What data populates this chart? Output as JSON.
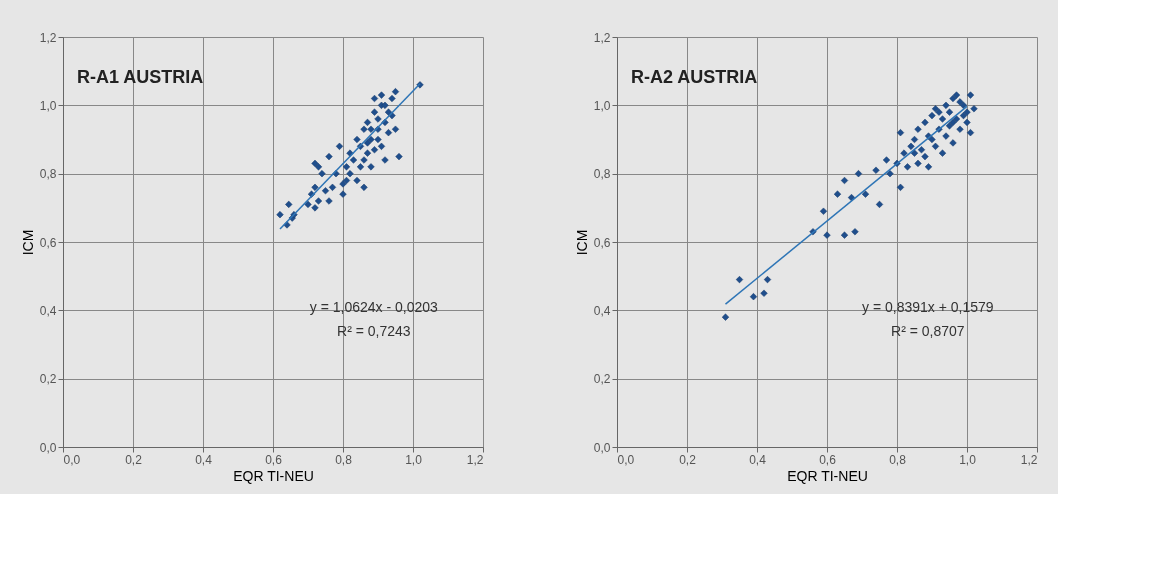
{
  "chart_data": [
    {
      "type": "scatter",
      "title": "R-A1 AUSTRIA",
      "xlabel": "EQR TI-NEU",
      "ylabel": "ICM",
      "annotations": [
        "y = 1,0624x - 0,0203",
        "R² = 0,7243"
      ],
      "xlim": [
        0,
        1.2
      ],
      "ylim": [
        0,
        1.2
      ],
      "xticks": [
        {
          "value": 0,
          "label": "0,0"
        },
        {
          "value": 0.2,
          "label": "0,2"
        },
        {
          "value": 0.4,
          "label": "0,4"
        },
        {
          "value": 0.6,
          "label": "0,6"
        },
        {
          "value": 0.8,
          "label": "0,8"
        },
        {
          "value": 1.0,
          "label": "1,0"
        },
        {
          "value": 1.2,
          "label": "1,2"
        }
      ],
      "yticks": [
        {
          "value": 0,
          "label": "0,0"
        },
        {
          "value": 0.2,
          "label": "0,2"
        },
        {
          "value": 0.4,
          "label": "0,4"
        },
        {
          "value": 0.6,
          "label": "0,6"
        },
        {
          "value": 0.8,
          "label": "0,8"
        },
        {
          "value": 1.0,
          "label": "1,0"
        },
        {
          "value": 1.2,
          "label": "1,2"
        }
      ],
      "grid": true,
      "series": [
        {
          "type": "scatter",
          "marker": "diamond",
          "color": "#1f4e8c",
          "x": [
            0.62,
            0.645,
            0.64,
            0.655,
            0.66,
            0.7,
            0.71,
            0.72,
            0.72,
            0.73,
            0.72,
            0.73,
            0.74,
            0.75,
            0.76,
            0.76,
            0.77,
            0.78,
            0.79,
            0.8,
            0.8,
            0.81,
            0.81,
            0.82,
            0.82,
            0.83,
            0.84,
            0.84,
            0.85,
            0.85,
            0.86,
            0.86,
            0.87,
            0.87,
            0.88,
            0.88,
            0.89,
            0.89,
            0.89,
            0.9,
            0.9,
            0.91,
            0.91,
            0.91,
            0.92,
            0.92,
            0.92,
            0.93,
            0.93,
            0.94,
            0.94,
            0.95,
            0.95,
            0.96,
            0.9,
            0.88,
            0.87,
            0.86,
            1.02
          ],
          "values": [
            0.68,
            0.71,
            0.65,
            0.67,
            0.68,
            0.71,
            0.74,
            0.76,
            0.7,
            0.72,
            0.83,
            0.82,
            0.8,
            0.75,
            0.72,
            0.85,
            0.76,
            0.8,
            0.88,
            0.74,
            0.77,
            0.82,
            0.78,
            0.86,
            0.8,
            0.84,
            0.78,
            0.9,
            0.88,
            0.82,
            0.76,
            0.93,
            0.86,
            0.95,
            0.9,
            0.82,
            0.98,
            0.87,
            1.02,
            0.93,
            0.96,
            1.0,
            0.88,
            1.03,
            0.95,
            0.84,
            1.0,
            0.92,
            0.98,
            1.02,
            0.97,
            1.04,
            0.93,
            0.85,
            0.9,
            0.93,
            0.89,
            0.84,
            1.06
          ]
        },
        {
          "type": "line",
          "marker": "none",
          "color": "#2e75b6",
          "x": [
            0.62,
            1.02
          ],
          "values": [
            0.638,
            1.063
          ]
        }
      ]
    },
    {
      "type": "scatter",
      "title": "R-A2 AUSTRIA",
      "xlabel": "EQR TI-NEU",
      "ylabel": "ICM",
      "annotations": [
        "y = 0,8391x + 0,1579",
        "R² = 0,8707"
      ],
      "xlim": [
        0,
        1.2
      ],
      "ylim": [
        0,
        1.2
      ],
      "xticks": [
        {
          "value": 0,
          "label": "0,0"
        },
        {
          "value": 0.2,
          "label": "0,2"
        },
        {
          "value": 0.4,
          "label": "0,4"
        },
        {
          "value": 0.6,
          "label": "0,6"
        },
        {
          "value": 0.8,
          "label": "0,8"
        },
        {
          "value": 1.0,
          "label": "1,0"
        },
        {
          "value": 1.2,
          "label": "1,2"
        }
      ],
      "yticks": [
        {
          "value": 0,
          "label": "0,0"
        },
        {
          "value": 0.2,
          "label": "0,2"
        },
        {
          "value": 0.4,
          "label": "0,4"
        },
        {
          "value": 0.6,
          "label": "0,6"
        },
        {
          "value": 0.8,
          "label": "0,8"
        },
        {
          "value": 1.0,
          "label": "1,0"
        },
        {
          "value": 1.2,
          "label": "1,2"
        }
      ],
      "grid": true,
      "series": [
        {
          "type": "scatter",
          "marker": "diamond",
          "color": "#1f4e8c",
          "x": [
            0.31,
            0.35,
            0.39,
            0.42,
            0.43,
            0.56,
            0.6,
            0.65,
            0.68,
            0.59,
            0.63,
            0.65,
            0.67,
            0.69,
            0.71,
            0.75,
            0.74,
            0.77,
            0.81,
            0.81,
            0.78,
            0.8,
            0.82,
            0.83,
            0.84,
            0.85,
            0.86,
            0.86,
            0.87,
            0.88,
            0.88,
            0.89,
            0.9,
            0.9,
            0.91,
            0.91,
            0.92,
            0.93,
            0.93,
            0.94,
            0.94,
            0.95,
            0.95,
            0.96,
            0.96,
            0.97,
            0.97,
            0.98,
            0.98,
            0.99,
            1.0,
            1.0,
            1.01,
            1.01,
            1.02,
            0.85,
            0.89,
            0.92,
            0.96,
            0.99
          ],
          "values": [
            0.38,
            0.49,
            0.44,
            0.45,
            0.49,
            0.63,
            0.62,
            0.62,
            0.63,
            0.69,
            0.74,
            0.78,
            0.73,
            0.8,
            0.74,
            0.71,
            0.81,
            0.84,
            0.76,
            0.92,
            0.8,
            0.83,
            0.86,
            0.82,
            0.88,
            0.9,
            0.83,
            0.93,
            0.87,
            0.85,
            0.95,
            0.82,
            0.9,
            0.97,
            0.88,
            0.99,
            0.93,
            0.96,
            0.86,
            1.0,
            0.91,
            0.98,
            0.94,
            1.02,
            0.89,
            1.03,
            0.96,
            1.01,
            0.93,
            1.0,
            0.98,
            0.95,
            1.03,
            0.92,
            0.99,
            0.86,
            0.91,
            0.98,
            0.95,
            0.97
          ]
        },
        {
          "type": "line",
          "marker": "none",
          "color": "#2e75b6",
          "x": [
            0.31,
            1.0
          ],
          "values": [
            0.418,
            0.997
          ]
        }
      ]
    }
  ]
}
